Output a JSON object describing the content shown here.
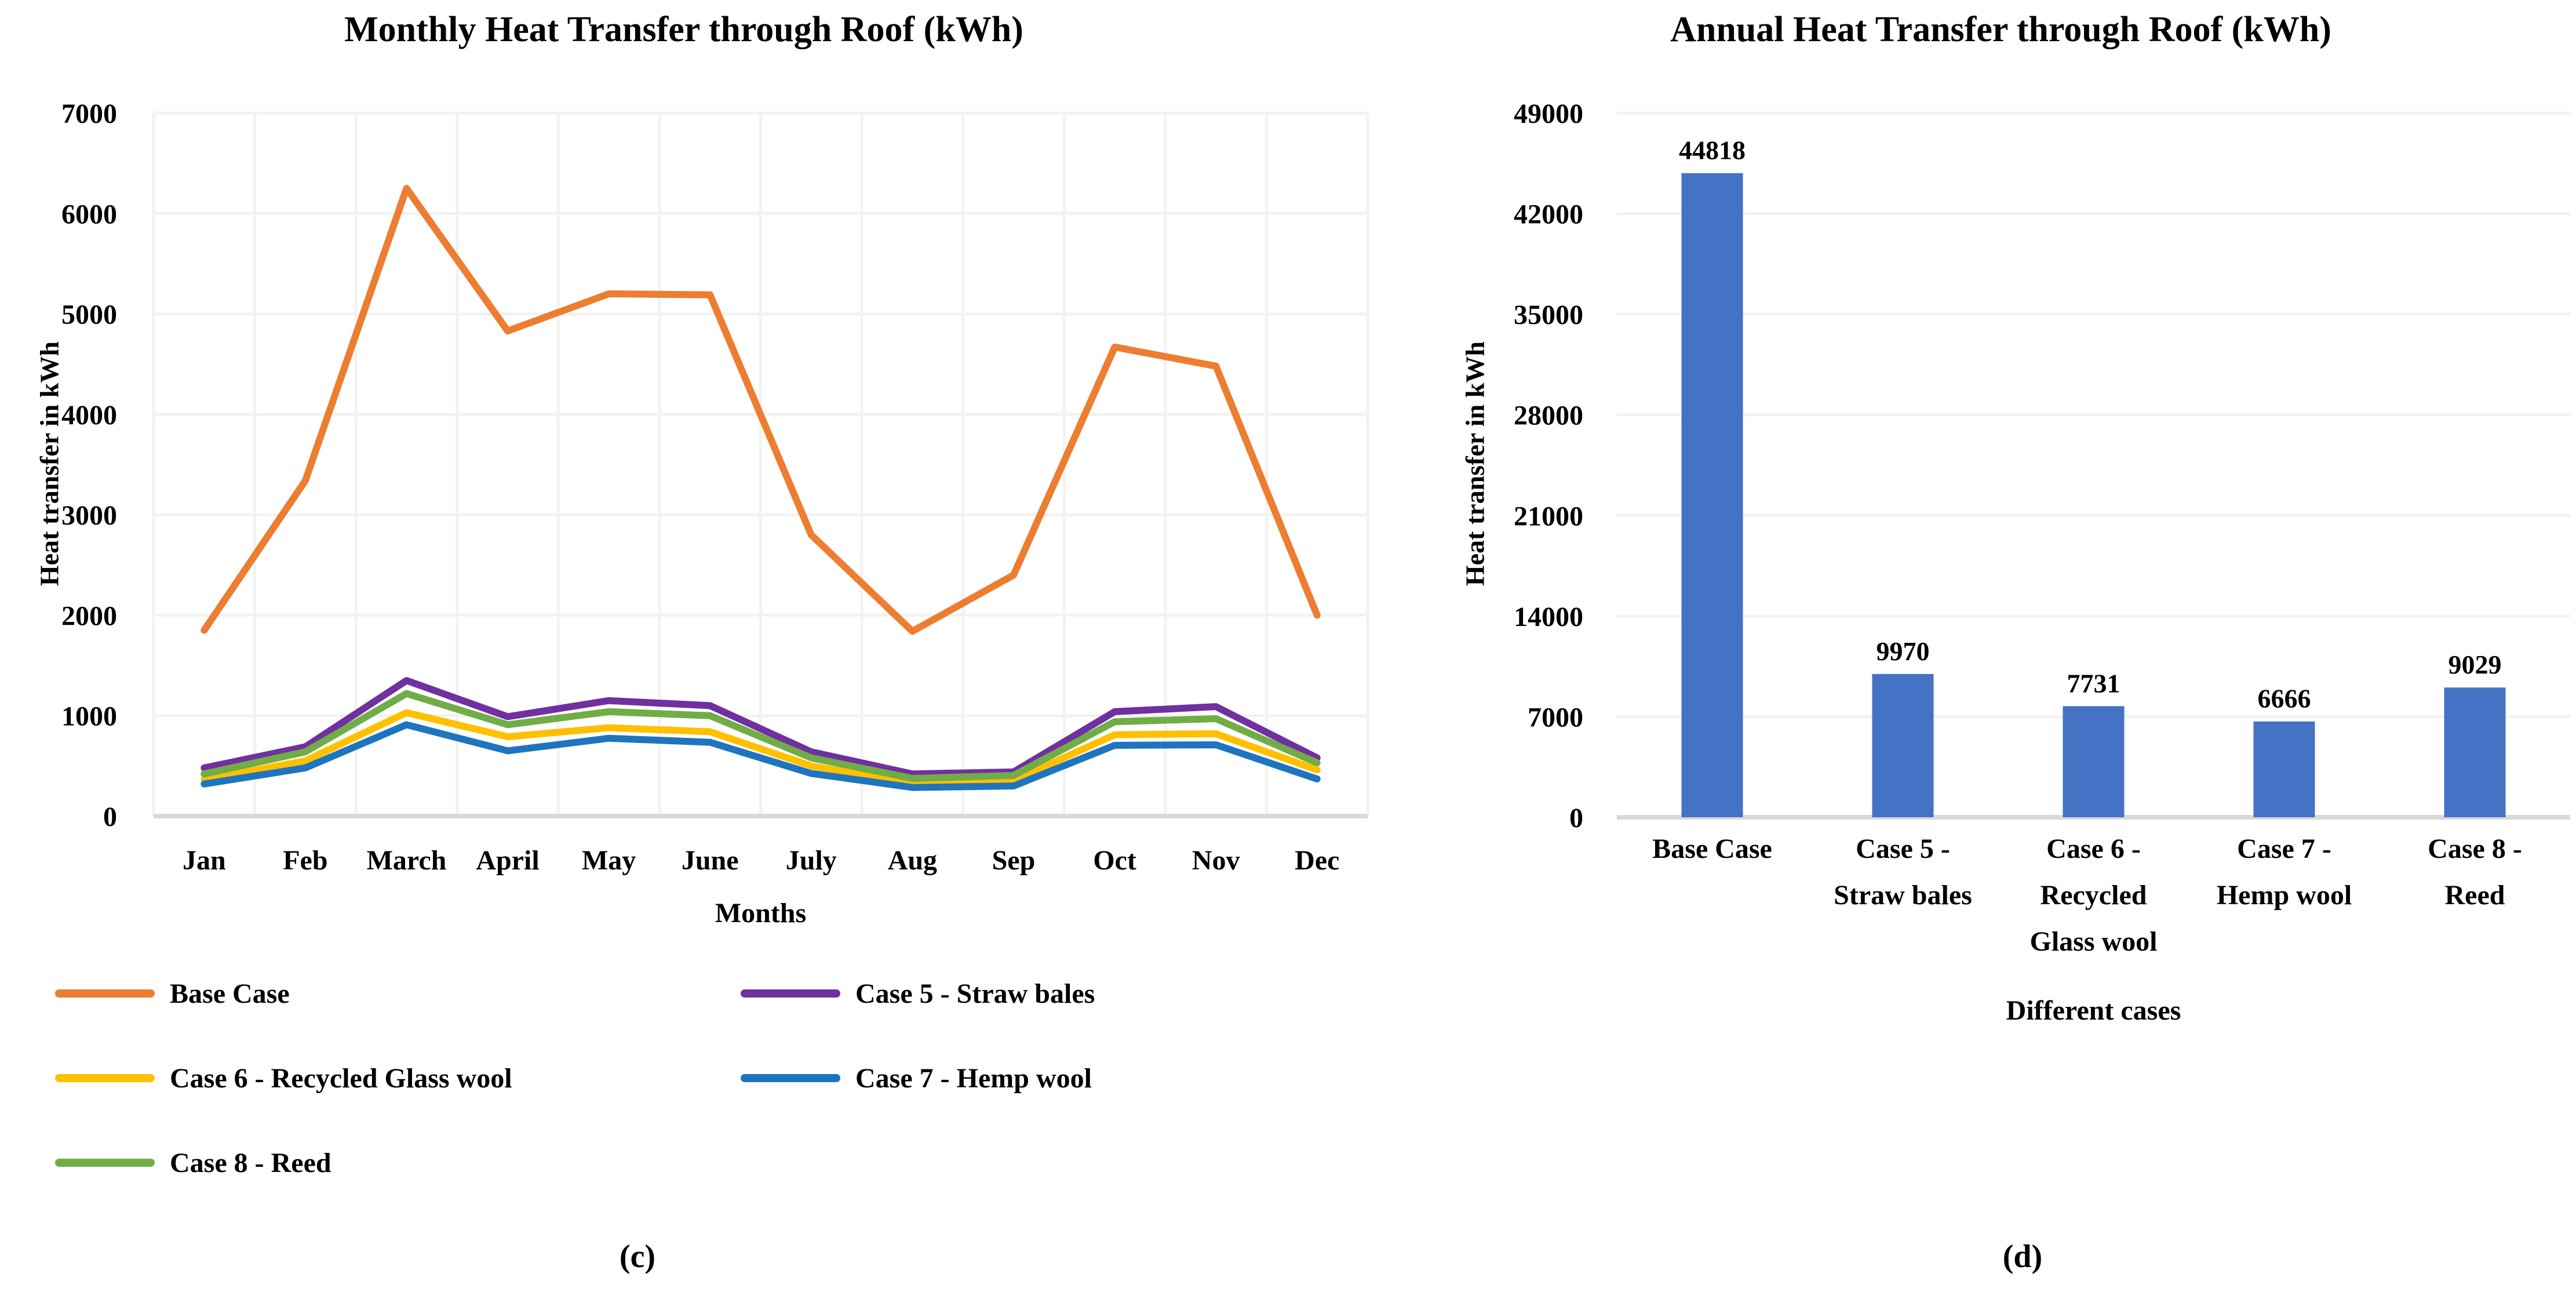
{
  "figure_captions": {
    "left": "(c)",
    "right": "(d)"
  },
  "colors": {
    "grid": "#F2F2F2",
    "axis_line": "#D9D9D9",
    "text": "#000000",
    "background": "#FFFFFF"
  },
  "chart_data": [
    {
      "type": "line",
      "title": "Monthly Heat Transfer through Roof (kWh)",
      "xlabel": "Months",
      "ylabel": "Heat transfer in kWh",
      "ylim": [
        0,
        7000
      ],
      "ytick_step": 1000,
      "yticks": [
        0,
        1000,
        2000,
        3000,
        4000,
        5000,
        6000,
        7000
      ],
      "grid": true,
      "legend": {
        "position": "below-left",
        "columns": 2
      },
      "categories": [
        "Jan",
        "Feb",
        "March",
        "April",
        "May",
        "June",
        "July",
        "Aug",
        "Sep",
        "Oct",
        "Nov",
        "Dec"
      ],
      "series": [
        {
          "name": "Base Case",
          "color": "#ED7D31",
          "values": [
            1850,
            3340,
            6250,
            4830,
            5200,
            5190,
            2800,
            1840,
            2400,
            4670,
            4480,
            2000
          ]
        },
        {
          "name": "Case 5 - Straw bales",
          "color": "#7030A0",
          "values": [
            480,
            690,
            1350,
            990,
            1150,
            1100,
            640,
            420,
            440,
            1040,
            1090,
            580
          ]
        },
        {
          "name": "Case 6 - Recycled Glass wool",
          "color": "#FFC000",
          "values": [
            365,
            550,
            1030,
            790,
            880,
            840,
            500,
            330,
            355,
            810,
            820,
            460
          ]
        },
        {
          "name": "Case 7 - Hemp wool",
          "color": "#1F74BE",
          "values": [
            320,
            480,
            910,
            650,
            775,
            735,
            425,
            285,
            300,
            705,
            710,
            370
          ]
        },
        {
          "name": "Case 8 - Reed",
          "color": "#70AD47",
          "values": [
            420,
            640,
            1220,
            910,
            1040,
            1000,
            580,
            375,
            405,
            940,
            970,
            530
          ]
        }
      ]
    },
    {
      "type": "bar",
      "title": "Annual Heat Transfer through Roof (kWh)",
      "xlabel": "Different cases",
      "ylabel": "Heat transfer in kWh",
      "ylim": [
        0,
        49000
      ],
      "ytick_step": 7000,
      "yticks": [
        0,
        7000,
        14000,
        21000,
        28000,
        35000,
        42000,
        49000
      ],
      "grid": true,
      "bar_color": "#4472C4",
      "show_data_labels": true,
      "categories": [
        "Base Case",
        "Case 5 - Straw bales",
        "Case 6 - Recycled Glass wool",
        "Case 7 - Hemp wool",
        "Case 8 - Reed"
      ],
      "category_lines": [
        [
          "Base Case"
        ],
        [
          "Case 5 -",
          "Straw bales"
        ],
        [
          "Case 6 -",
          "Recycled",
          "Glass wool"
        ],
        [
          "Case 7 -",
          "Hemp wool"
        ],
        [
          "Case 8 -",
          "Reed"
        ]
      ],
      "values": [
        44818,
        9970,
        7731,
        6666,
        9029
      ]
    }
  ]
}
